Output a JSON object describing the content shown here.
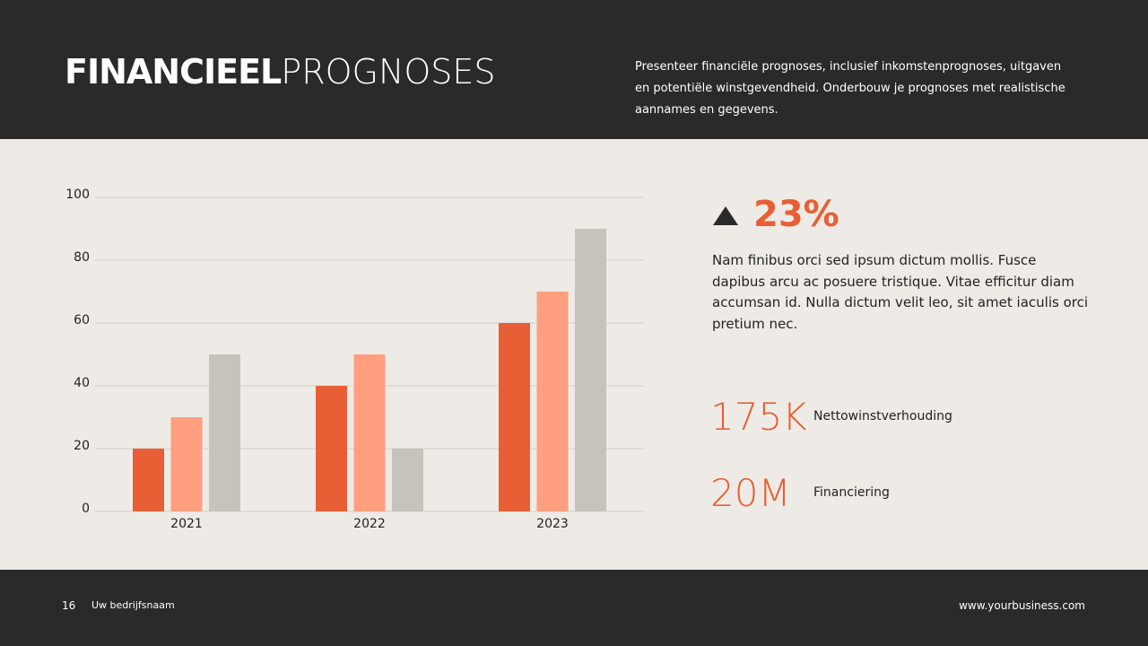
{
  "header": {
    "title_bold": "FINANCIEEL",
    "title_light": "PROGNOSES",
    "description": "Presenteer financiële prognoses, inclusief inkomstenprognoses, uitgaven en potentiële winstgevendheid. Onderbouw je prognoses met realistische aannames en gegevens."
  },
  "chart_data": {
    "type": "bar",
    "categories": [
      "2021",
      "2022",
      "2023"
    ],
    "series": [
      {
        "color": "#e85f35",
        "values": [
          20,
          40,
          60
        ]
      },
      {
        "color": "#ff9f80",
        "values": [
          30,
          50,
          70
        ]
      },
      {
        "color": "#c5c3bb",
        "values": [
          50,
          20,
          90
        ]
      }
    ],
    "ylim": [
      0,
      100
    ],
    "yticks": [
      0,
      20,
      40,
      60,
      80,
      100
    ],
    "grid": true
  },
  "highlight": {
    "value": "23%",
    "text": "Nam finibus orci sed ipsum dictum mollis. Fusce dapibus arcu ac posuere tristique. Vitae efficitur diam accumsan id. Nulla dictum velit leo, sit amet iaculis orci pretium nec."
  },
  "stats": [
    {
      "value": "175K",
      "label": "Nettowinstverhouding"
    },
    {
      "value": "20M",
      "label": "Financiering"
    }
  ],
  "footer": {
    "page": "16",
    "company": "Uw bedrijfsnaam",
    "website": "www.yourbusiness.com"
  }
}
